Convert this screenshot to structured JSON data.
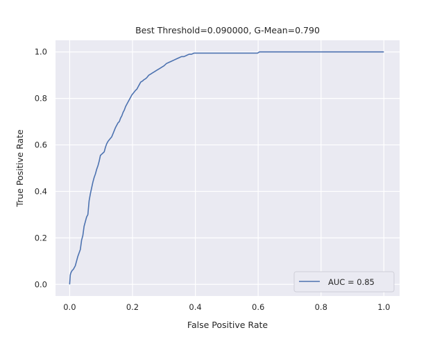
{
  "chart_data": {
    "type": "line",
    "title": "Best Threshold=0.090000, G-Mean=0.790",
    "xlabel": "False Positive Rate",
    "ylabel": "True Positive Rate",
    "xlim": [
      -0.045,
      1.05
    ],
    "ylim": [
      -0.05,
      1.05
    ],
    "xticks": [
      0.0,
      0.2,
      0.4,
      0.6,
      0.8,
      1.0
    ],
    "xtick_labels": [
      "0.0",
      "0.2",
      "0.4",
      "0.6",
      "0.8",
      "1.0"
    ],
    "yticks": [
      0.0,
      0.2,
      0.4,
      0.6,
      0.8,
      1.0
    ],
    "ytick_labels": [
      "0.0",
      "0.2",
      "0.4",
      "0.6",
      "0.8",
      "1.0"
    ],
    "grid": true,
    "legend_position": "lower-right",
    "colors": {
      "background": "#EAEAF2",
      "grid": "#FFFFFF",
      "line": "#4C72B0"
    },
    "series": [
      {
        "name": "AUC = 0.85",
        "x": [
          0.0,
          0.002,
          0.004,
          0.008,
          0.012,
          0.018,
          0.022,
          0.026,
          0.03,
          0.034,
          0.038,
          0.042,
          0.046,
          0.05,
          0.054,
          0.058,
          0.062,
          0.066,
          0.07,
          0.074,
          0.078,
          0.082,
          0.086,
          0.09,
          0.094,
          0.098,
          0.102,
          0.106,
          0.11,
          0.114,
          0.118,
          0.122,
          0.128,
          0.134,
          0.14,
          0.146,
          0.15,
          0.154,
          0.158,
          0.162,
          0.166,
          0.17,
          0.174,
          0.178,
          0.182,
          0.186,
          0.19,
          0.194,
          0.198,
          0.204,
          0.21,
          0.214,
          0.218,
          0.222,
          0.226,
          0.232,
          0.236,
          0.242,
          0.246,
          0.252,
          0.258,
          0.264,
          0.27,
          0.276,
          0.282,
          0.288,
          0.294,
          0.3,
          0.308,
          0.316,
          0.324,
          0.332,
          0.34,
          0.348,
          0.356,
          0.364,
          0.372,
          0.38,
          0.388,
          0.396,
          0.404,
          0.42,
          0.44,
          0.448,
          0.456,
          0.462,
          0.48,
          0.52,
          0.56,
          0.598,
          0.604,
          0.62,
          0.7,
          0.8,
          0.9,
          1.0
        ],
        "y": [
          0.0,
          0.04,
          0.05,
          0.06,
          0.065,
          0.08,
          0.1,
          0.12,
          0.135,
          0.15,
          0.19,
          0.21,
          0.25,
          0.27,
          0.29,
          0.3,
          0.36,
          0.39,
          0.415,
          0.44,
          0.46,
          0.475,
          0.495,
          0.51,
          0.53,
          0.555,
          0.56,
          0.565,
          0.57,
          0.59,
          0.605,
          0.615,
          0.625,
          0.635,
          0.655,
          0.675,
          0.685,
          0.695,
          0.7,
          0.715,
          0.725,
          0.74,
          0.75,
          0.765,
          0.775,
          0.785,
          0.795,
          0.805,
          0.815,
          0.825,
          0.835,
          0.84,
          0.85,
          0.86,
          0.87,
          0.875,
          0.88,
          0.885,
          0.89,
          0.9,
          0.905,
          0.91,
          0.915,
          0.92,
          0.925,
          0.93,
          0.935,
          0.94,
          0.95,
          0.955,
          0.96,
          0.965,
          0.97,
          0.975,
          0.98,
          0.98,
          0.985,
          0.99,
          0.99,
          0.995,
          0.995,
          0.995,
          0.995,
          0.995,
          0.995,
          0.995,
          0.995,
          0.995,
          0.995,
          0.995,
          1.0,
          1.0,
          1.0,
          1.0,
          1.0,
          1.0
        ]
      }
    ]
  }
}
